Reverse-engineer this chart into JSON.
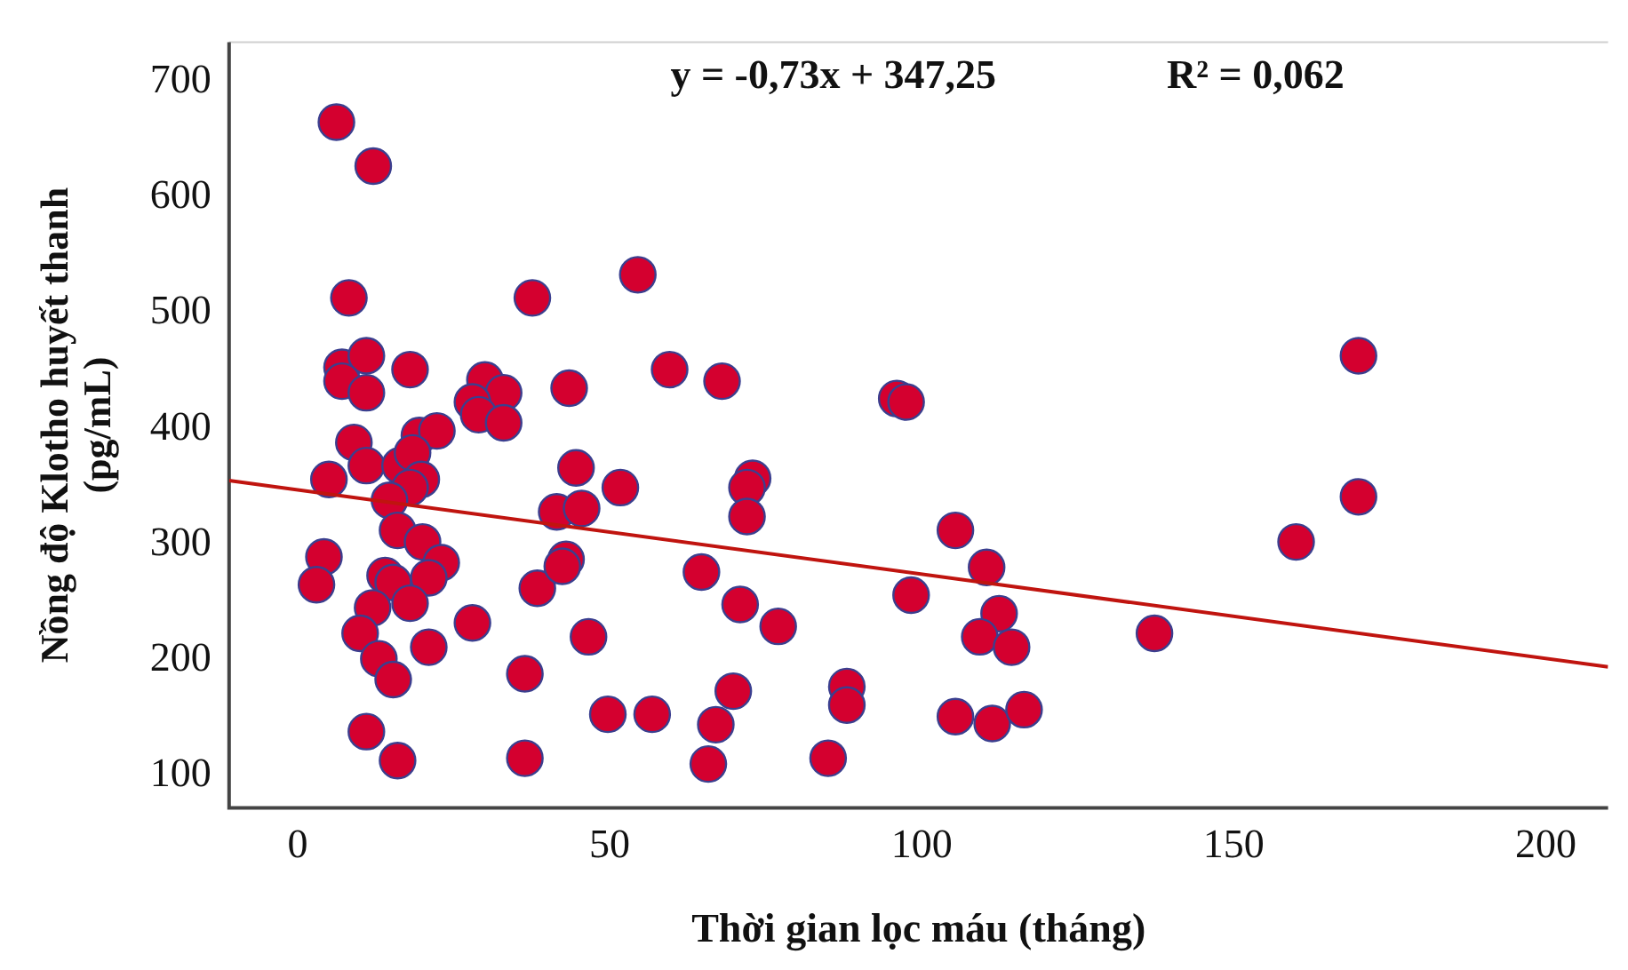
{
  "chart_data": {
    "type": "scatter",
    "xlabel": "Thời gian lọc máu (tháng)",
    "ylabel": "Nồng độ Klotho huyết thanh\n(pg/mL)",
    "annotations": [
      "y = -0,73x + 347,25",
      "R² = 0,062"
    ],
    "xlim": [
      -11,
      210
    ],
    "xticks": [
      0,
      50,
      100,
      150,
      200
    ],
    "ylim": [
      72,
      734
    ],
    "yticks": [
      100,
      200,
      300,
      400,
      500,
      600,
      700
    ],
    "grid": false,
    "legend": false,
    "series": [
      {
        "color": "#d4002f",
        "marker": "circle",
        "x": [
          6.2,
          12.1,
          8.2,
          37.6,
          54.5,
          59.6,
          7.1,
          11,
          7.1,
          11,
          18,
          30,
          33,
          28,
          29,
          33,
          43.5,
          68,
          96,
          97.5,
          9,
          19.5,
          22.3,
          11,
          5,
          16.4,
          18.4,
          19.8,
          18,
          14.7,
          44.6,
          51.7,
          41.5,
          45.5,
          16,
          20,
          23,
          21,
          4.2,
          3,
          14,
          15.3,
          18,
          12,
          10,
          21,
          13,
          15.3,
          28,
          38.4,
          43,
          42.4,
          46.6,
          36.4,
          11,
          16,
          36.4,
          49.7,
          56.8,
          72.9,
          72,
          72,
          64.7,
          70.9,
          77,
          69.8,
          67,
          65.8,
          88,
          88,
          85,
          105.4,
          110.4,
          98.3,
          112.4,
          109.3,
          114.4,
          105.4,
          111.3,
          116.4,
          137.3,
          170,
          170,
          160
        ],
        "values": [
          665,
          627,
          513,
          513,
          533,
          451,
          453,
          463,
          441,
          431,
          451,
          442,
          431,
          423,
          412,
          405,
          435,
          441,
          426,
          423,
          388,
          394,
          398,
          368,
          356,
          368,
          379,
          356,
          349,
          338,
          366,
          349,
          328,
          331,
          312,
          302,
          284,
          271,
          289,
          265,
          273,
          267,
          249,
          245,
          223,
          211,
          201,
          183,
          232,
          262,
          287,
          281,
          220,
          188,
          138,
          113,
          115,
          153,
          153,
          357,
          349,
          324,
          276,
          248,
          229,
          173,
          144,
          110,
          177,
          161,
          115,
          312,
          280,
          256,
          240,
          220,
          211,
          151,
          145,
          157,
          223,
          463,
          341,
          302
        ]
      },
      {
        "type": "line",
        "color": "#c0140f",
        "x": [
          -11,
          210
        ],
        "values": [
          355,
          194
        ]
      }
    ]
  }
}
